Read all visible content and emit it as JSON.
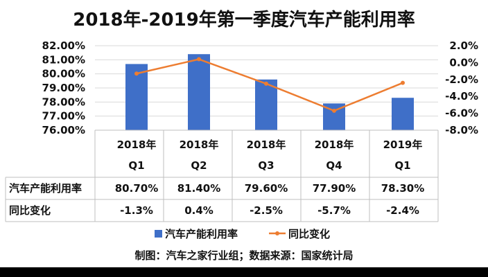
{
  "chart_data": {
    "type": "bar",
    "title": "2018年-2019年第一季度汽车产能利用率",
    "categories": [
      [
        "2018年",
        "Q1"
      ],
      [
        "2018年",
        "Q2"
      ],
      [
        "2018年",
        "Q3"
      ],
      [
        "2018年",
        "Q4"
      ],
      [
        "2019年",
        "Q1"
      ]
    ],
    "series": [
      {
        "name": "汽车产能利用率",
        "type": "bar",
        "axis": "left",
        "color": "#3F6FC8",
        "values": [
          80.7,
          81.4,
          79.6,
          77.9,
          78.3
        ],
        "table_labels": [
          "80.70%",
          "81.40%",
          "79.60%",
          "77.90%",
          "78.30%"
        ]
      },
      {
        "name": "同比变化",
        "type": "line",
        "axis": "right",
        "color": "#ED7D31",
        "values": [
          -1.3,
          0.4,
          -2.5,
          -5.7,
          -2.4
        ],
        "table_labels": [
          "-1.3%",
          "0.4%",
          "-2.5%",
          "-5.7%",
          "-2.4%"
        ]
      }
    ],
    "y_left": {
      "ylim": [
        76,
        82
      ],
      "ticks": [
        "82.00%",
        "81.00%",
        "80.00%",
        "79.00%",
        "78.00%",
        "77.00%",
        "76.00%"
      ]
    },
    "y_right": {
      "ylim": [
        -8,
        2
      ],
      "ticks": [
        "2.0%",
        "0.0%",
        "-2.0%",
        "-4.0%",
        "-6.0%",
        "-8.0%"
      ]
    },
    "grid": true,
    "legend_position": "bottom",
    "data_table": true,
    "source_note": "制图：汽车之家行业组；数据来源：国家统计局"
  }
}
